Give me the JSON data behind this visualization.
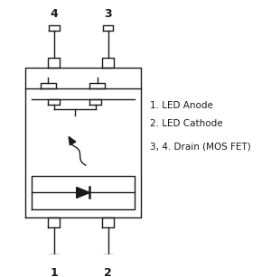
{
  "bg_color": "#ffffff",
  "line_color": "#1a1a1a",
  "text_color": "#1a1a1a",
  "labels": {
    "led1": "1. LED Anode",
    "led2": "2. LED Cathode",
    "drain": "3, 4. Drain (MOS FET)"
  },
  "font_size": 7.5,
  "pin_labels": [
    "4",
    "3",
    "1",
    "2"
  ]
}
